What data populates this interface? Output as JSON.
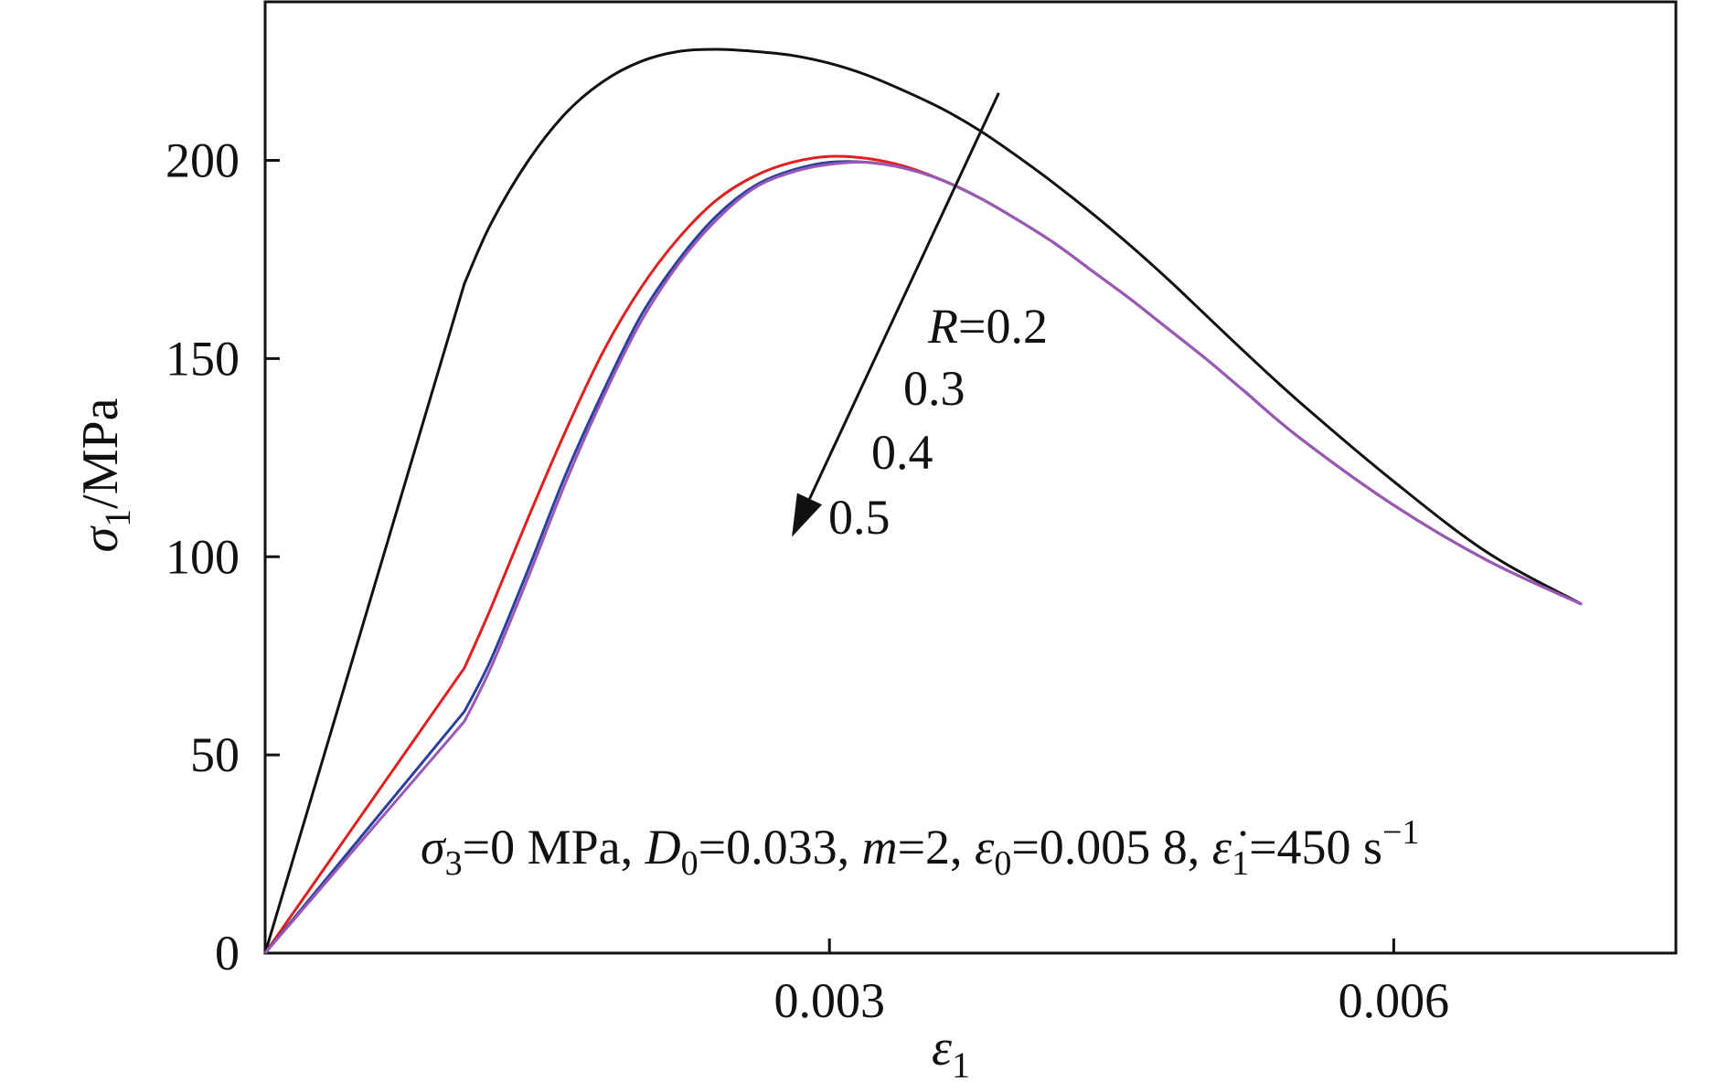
{
  "chart_data": {
    "type": "line",
    "xlabel": {
      "symbol": "ε",
      "subscript": "1"
    },
    "ylabel": {
      "symbol": "σ",
      "subscript": "1",
      "unit": "/MPa"
    },
    "xlim": [
      0,
      0.0075
    ],
    "ylim": [
      0,
      240
    ],
    "x_ticks": [
      0.003,
      0.006
    ],
    "x_tick_labels": [
      "0.003",
      "0.006"
    ],
    "y_ticks": [
      0,
      50,
      100,
      150,
      200
    ],
    "y_tick_labels": [
      "0",
      "50",
      "100",
      "150",
      "200"
    ],
    "grid": false,
    "series": [
      {
        "color": "#111111",
        "x": [
          0,
          0.00106,
          0.0012,
          0.0014,
          0.0016,
          0.0018,
          0.002,
          0.0022,
          0.0024,
          0.0026,
          0.0028,
          0.003,
          0.0032,
          0.0034,
          0.0036,
          0.0038,
          0.004,
          0.0042,
          0.0044,
          0.0046,
          0.0048,
          0.005,
          0.0052,
          0.0055,
          0.006,
          0.0065,
          0.007
        ],
        "y": [
          0,
          169,
          184,
          200,
          212,
          220,
          225,
          227.5,
          228,
          227.5,
          226.5,
          224.5,
          221.5,
          217.5,
          213,
          207.5,
          201,
          194,
          186.5,
          178.5,
          170,
          161,
          152,
          139,
          119,
          101,
          88
        ]
      },
      {
        "color": "#e02020",
        "x": [
          0,
          0.00106,
          0.0012,
          0.0014,
          0.0016,
          0.0018,
          0.002,
          0.0022,
          0.0024,
          0.0026,
          0.0028,
          0.003,
          0.0032,
          0.0034,
          0.0036,
          0.0038,
          0.004,
          0.0042,
          0.0044,
          0.0046,
          0.0048,
          0.005,
          0.0052,
          0.0055,
          0.006,
          0.0065,
          0.007
        ],
        "y": [
          0,
          72,
          87,
          110,
          132,
          152,
          168,
          180.5,
          190,
          196,
          199.5,
          201,
          200.5,
          198.5,
          195,
          190.5,
          185,
          179,
          172,
          165,
          157.5,
          150,
          142,
          130,
          113,
          99,
          88
        ]
      },
      {
        "color": "#2a3f9e",
        "x": [
          0,
          0.00106,
          0.0012,
          0.0014,
          0.0016,
          0.0018,
          0.002,
          0.0022,
          0.0024,
          0.0026,
          0.0028,
          0.003,
          0.0032,
          0.0034,
          0.0036,
          0.0038,
          0.004,
          0.0042,
          0.0044,
          0.0046,
          0.0048,
          0.005,
          0.0052,
          0.0055,
          0.006,
          0.0065,
          0.007
        ],
        "y": [
          0,
          61,
          74,
          97,
          121,
          142,
          161,
          175,
          186,
          193.5,
          197.5,
          199.5,
          199.5,
          198,
          195,
          190.5,
          185,
          179,
          172,
          165,
          157.5,
          150,
          142,
          130,
          113,
          99,
          88
        ]
      },
      {
        "color": "#9b59b6",
        "x": [
          0,
          0.00106,
          0.0012,
          0.0014,
          0.0016,
          0.0018,
          0.002,
          0.0022,
          0.0024,
          0.0026,
          0.0028,
          0.003,
          0.0032,
          0.0034,
          0.0036,
          0.0038,
          0.004,
          0.0042,
          0.0044,
          0.0046,
          0.0048,
          0.005,
          0.0052,
          0.0055,
          0.006,
          0.0065,
          0.007
        ],
        "y": [
          0,
          58.5,
          72,
          95,
          119,
          140.5,
          159.5,
          174,
          185,
          193,
          197,
          199,
          199.5,
          198,
          195,
          190.5,
          185,
          179,
          172,
          165,
          157.5,
          150,
          142,
          130,
          113,
          99,
          88
        ]
      }
    ],
    "arrow": {
      "from": [
        0.0039,
        217
      ],
      "to": [
        0.0028,
        105
      ]
    },
    "r_labels": {
      "first_prefix": "R",
      "first_value": "=0.2",
      "others": [
        "0.3",
        "0.4",
        "0.5"
      ]
    },
    "annotation": {
      "s3_symbol": "σ",
      "s3_sub": "3",
      "s3_value": "=0 MPa, ",
      "d0_symbol": "D",
      "d0_sub": "0",
      "d0_value": "=0.033, ",
      "m_symbol": "m",
      "m_value": "=2, ",
      "e0_symbol": "ε",
      "e0_sub": "0",
      "e0_value": "=0.005 8, ",
      "edot_symbol": "ε̇",
      "edot_sub": "1",
      "edot_value": "=450 s",
      "edot_exp": "−1"
    }
  }
}
